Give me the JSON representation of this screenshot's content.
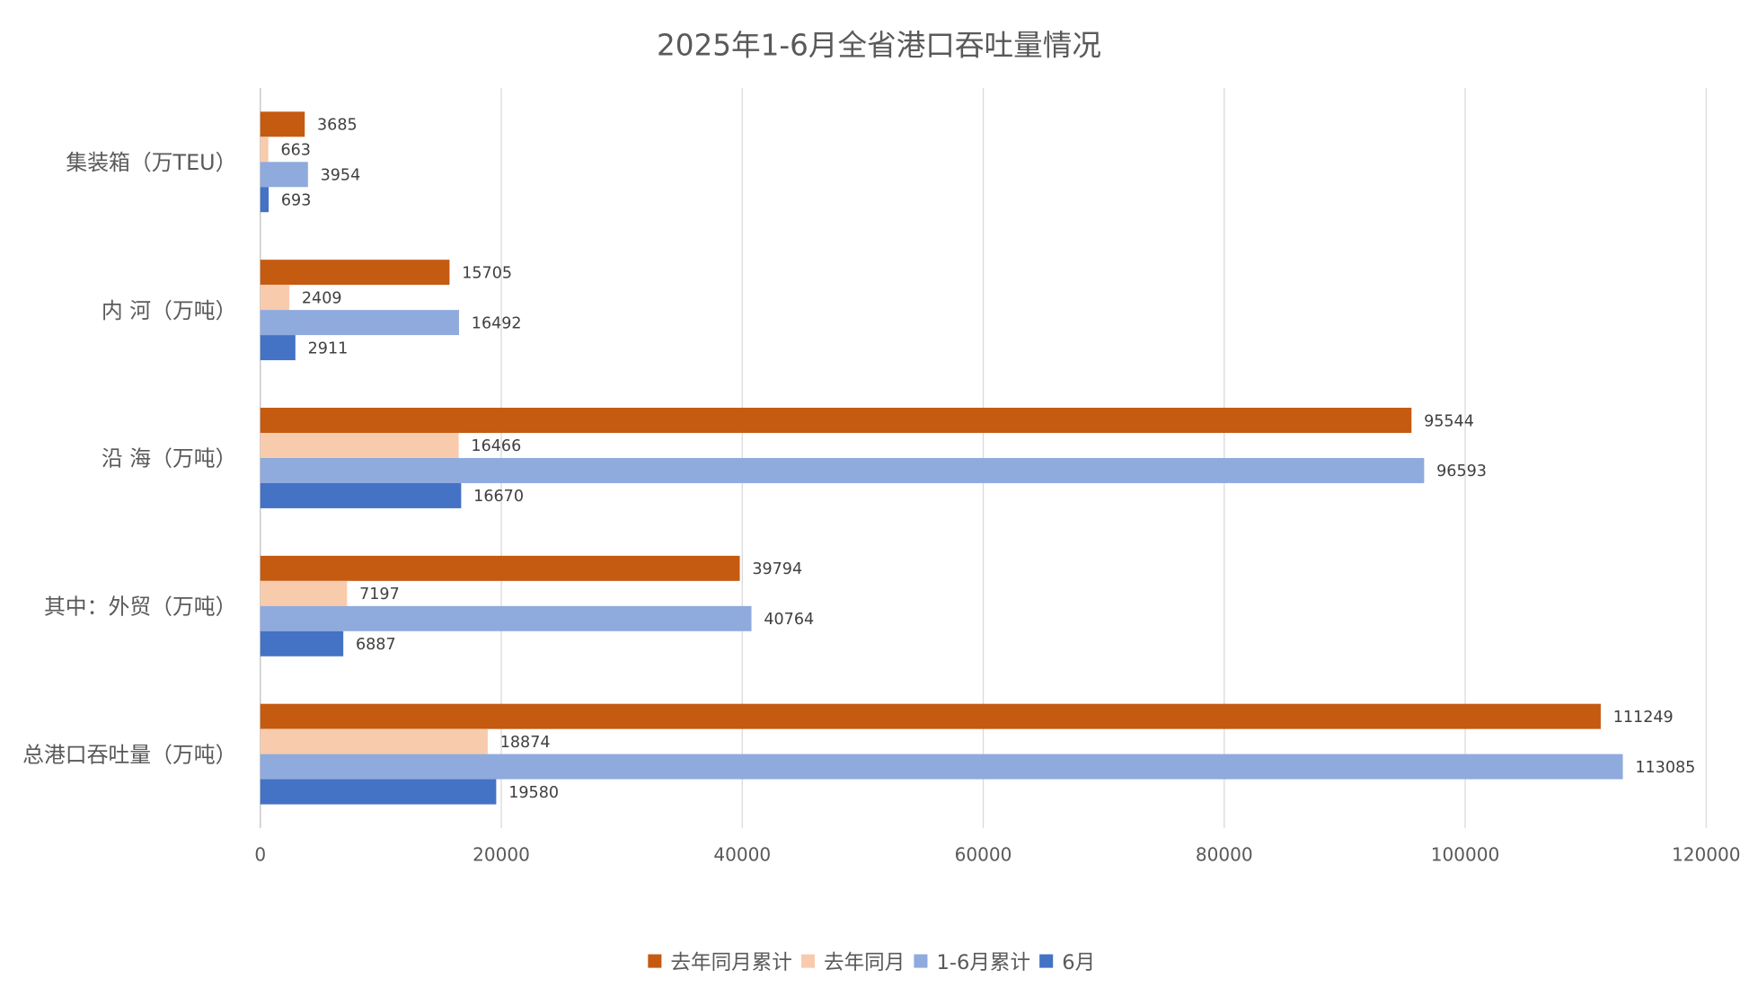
{
  "chart_data": {
    "type": "bar",
    "orientation": "horizontal",
    "title": "2025年1-6月全省港口吞吐量情况",
    "categories": [
      "集装箱（万TEU）",
      "内 河（万吨）",
      "沿 海（万吨）",
      "其中：外贸（万吨）",
      "总港口吞吐量（万吨）"
    ],
    "series": [
      {
        "name": "去年同月累计",
        "color": "#C55A11",
        "values": [
          3685,
          15705,
          95544,
          39794,
          111249
        ]
      },
      {
        "name": "去年同月",
        "color": "#F8CBAD",
        "values": [
          663,
          2409,
          16466,
          7197,
          18874
        ]
      },
      {
        "name": "1-6月累计",
        "color": "#8FAADC",
        "values": [
          3954,
          16492,
          96593,
          40764,
          113085
        ]
      },
      {
        "name": "6月",
        "color": "#4472C4",
        "values": [
          693,
          2911,
          16670,
          6887,
          19580
        ]
      }
    ],
    "xlim": [
      0,
      120000
    ],
    "xticks": [
      "0",
      "20000",
      "40000",
      "60000",
      "80000",
      "100000",
      "120000"
    ],
    "grid": true,
    "data_labels": true,
    "legend": "bottom"
  }
}
